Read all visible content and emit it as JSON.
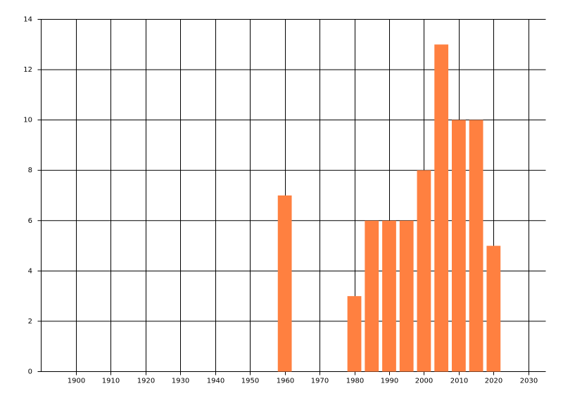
{
  "chart_data": {
    "type": "bar",
    "x": [
      1960,
      1980,
      1985,
      1990,
      1995,
      2000,
      2005,
      2010,
      2015,
      2020
    ],
    "values": [
      7,
      3,
      6,
      6,
      6,
      8,
      13,
      10,
      10,
      5
    ],
    "color": "#ff8040",
    "xlim": [
      1890,
      2035
    ],
    "xticks": [
      1900,
      1910,
      1920,
      1930,
      1940,
      1950,
      1960,
      1970,
      1980,
      1990,
      2000,
      2010,
      2020,
      2030
    ],
    "ylim": [
      0,
      14
    ],
    "yticks": [
      0,
      2,
      4,
      6,
      8,
      10,
      12,
      14
    ],
    "grid": true
  }
}
